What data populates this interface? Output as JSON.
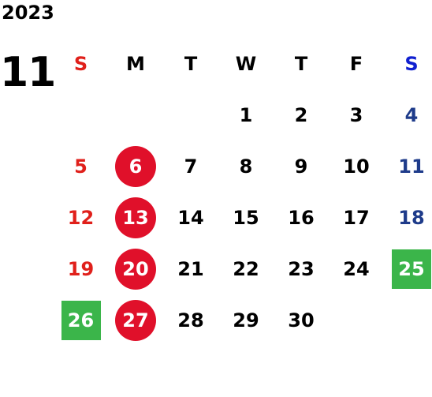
{
  "year": "2023",
  "month": "11",
  "weekdays": [
    "S",
    "M",
    "T",
    "W",
    "T",
    "F",
    "S"
  ],
  "colors": {
    "sunday": "#e0201b",
    "saturday": "#1e3b8a",
    "holiday_circle": "#e0102a",
    "highlight_green": "#3bb54a"
  },
  "weeks": [
    [
      {
        "day": "",
        "style": ""
      },
      {
        "day": "",
        "style": ""
      },
      {
        "day": "",
        "style": ""
      },
      {
        "day": "1",
        "style": ""
      },
      {
        "day": "2",
        "style": ""
      },
      {
        "day": "3",
        "style": ""
      },
      {
        "day": "4",
        "style": "sat"
      }
    ],
    [
      {
        "day": "5",
        "style": "sun"
      },
      {
        "day": "6",
        "style": "circle"
      },
      {
        "day": "7",
        "style": ""
      },
      {
        "day": "8",
        "style": ""
      },
      {
        "day": "9",
        "style": ""
      },
      {
        "day": "10",
        "style": ""
      },
      {
        "day": "11",
        "style": "sat"
      }
    ],
    [
      {
        "day": "12",
        "style": "sun"
      },
      {
        "day": "13",
        "style": "circle"
      },
      {
        "day": "14",
        "style": ""
      },
      {
        "day": "15",
        "style": ""
      },
      {
        "day": "16",
        "style": ""
      },
      {
        "day": "17",
        "style": ""
      },
      {
        "day": "18",
        "style": "sat"
      }
    ],
    [
      {
        "day": "19",
        "style": "sun"
      },
      {
        "day": "20",
        "style": "circle"
      },
      {
        "day": "21",
        "style": ""
      },
      {
        "day": "22",
        "style": ""
      },
      {
        "day": "23",
        "style": ""
      },
      {
        "day": "24",
        "style": ""
      },
      {
        "day": "25",
        "style": "green"
      }
    ],
    [
      {
        "day": "26",
        "style": "green"
      },
      {
        "day": "27",
        "style": "circle"
      },
      {
        "day": "28",
        "style": ""
      },
      {
        "day": "29",
        "style": ""
      },
      {
        "day": "30",
        "style": ""
      },
      {
        "day": "",
        "style": ""
      },
      {
        "day": "",
        "style": ""
      }
    ]
  ]
}
